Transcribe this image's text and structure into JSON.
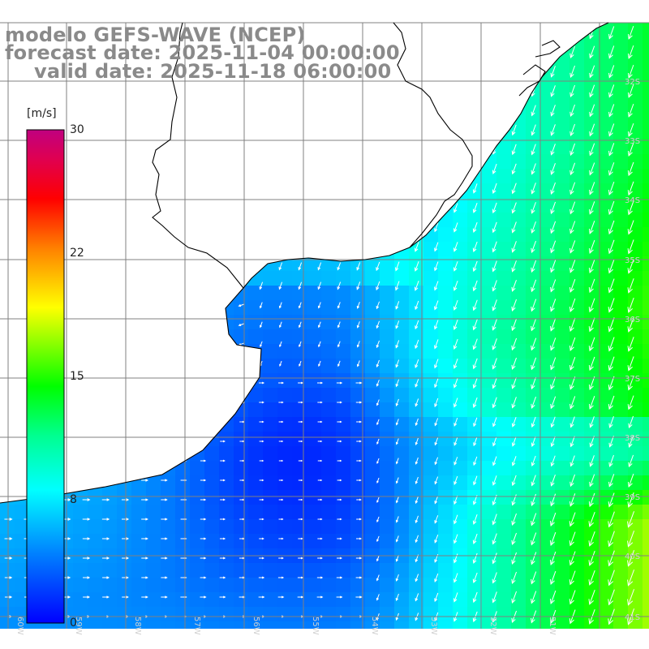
{
  "title": {
    "model": "modelo GEFS-WAVE (NCEP)",
    "forecast": "forecast date: 2025-11-04 00:00:00",
    "valid": "valid date: 2025-11-18 06:00:00"
  },
  "colorbar": {
    "unit": "[m/s]",
    "ticks": [
      "30",
      "22",
      "15",
      "8",
      "0"
    ],
    "colors": [
      "#0000ff",
      "#0080ff",
      "#00e0ff",
      "#00ff80",
      "#00ff00",
      "#80ff00",
      "#ffff00",
      "#ff8000",
      "#ff0000",
      "#e0006a",
      "#c00080"
    ]
  },
  "axes": {
    "lat_labels": [
      "32S",
      "33S",
      "34S",
      "35S",
      "36S",
      "37S",
      "38S",
      "39S",
      "40S",
      "41S"
    ],
    "lon_labels": [
      "60W",
      "59W",
      "58W",
      "57W",
      "56W",
      "55W",
      "54W",
      "53W",
      "52W",
      "51W"
    ]
  },
  "colors": {
    "land": "#ffffff",
    "coast": "#000000",
    "grid": "#808080",
    "arrow": "#ffffff",
    "title": "#8a8a8a"
  }
}
